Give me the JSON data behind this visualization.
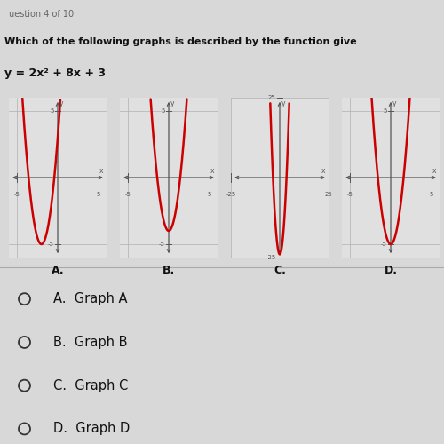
{
  "question_line1": "uestion 4 of 10",
  "question_line2": "Which of the following graphs is described by the function give",
  "function_label": "y = 2x² + 8x + 3",
  "bg_color": "#d8d8d8",
  "panel_bg": "#e0e0e0",
  "graphs": [
    {
      "label": "A.",
      "xlim": [
        -6,
        6
      ],
      "ylim": [
        -6,
        6
      ],
      "xtick_vals": [
        -5,
        5
      ],
      "ytick_vals": [
        5,
        -5
      ],
      "xtick_labels": [
        "-5",
        "5"
      ],
      "ytick_labels": [
        "5",
        "-5"
      ],
      "a": 2,
      "b": 8,
      "c": 3,
      "curve_color": "#cc0000"
    },
    {
      "label": "B.",
      "xlim": [
        -6,
        6
      ],
      "ylim": [
        -6,
        6
      ],
      "xtick_vals": [
        -5,
        5
      ],
      "ytick_vals": [
        5,
        -5
      ],
      "xtick_labels": [
        "-5",
        "5"
      ],
      "ytick_labels": [
        "5",
        "-5"
      ],
      "a": 2,
      "b": 0,
      "c": -4,
      "curve_color": "#cc0000"
    },
    {
      "label": "C.",
      "xlim": [
        -25,
        25
      ],
      "ylim": [
        -25,
        25
      ],
      "xtick_vals": [
        -25,
        25
      ],
      "ytick_vals": [
        25,
        -25
      ],
      "xtick_labels": [
        "-25",
        "25"
      ],
      "ytick_labels": [
        "25",
        "-25"
      ],
      "a": 2,
      "b": 0,
      "c": -24,
      "curve_color": "#cc0000"
    },
    {
      "label": "D.",
      "xlim": [
        -6,
        6
      ],
      "ylim": [
        -6,
        6
      ],
      "xtick_vals": [
        -5,
        5
      ],
      "ytick_vals": [
        5,
        -5
      ],
      "xtick_labels": [
        "-5",
        "5"
      ],
      "ytick_labels": [
        "5",
        "-5"
      ],
      "a": 2,
      "b": 0,
      "c": -5,
      "curve_color": "#cc0000"
    }
  ],
  "choices": [
    "A.  Graph A",
    "B.  Graph B",
    "C.  Graph C",
    "D.  Graph D"
  ],
  "grid_color": "#b0b0b0",
  "axis_color": "#555555",
  "curve_lw": 1.8,
  "font_color": "#111111"
}
